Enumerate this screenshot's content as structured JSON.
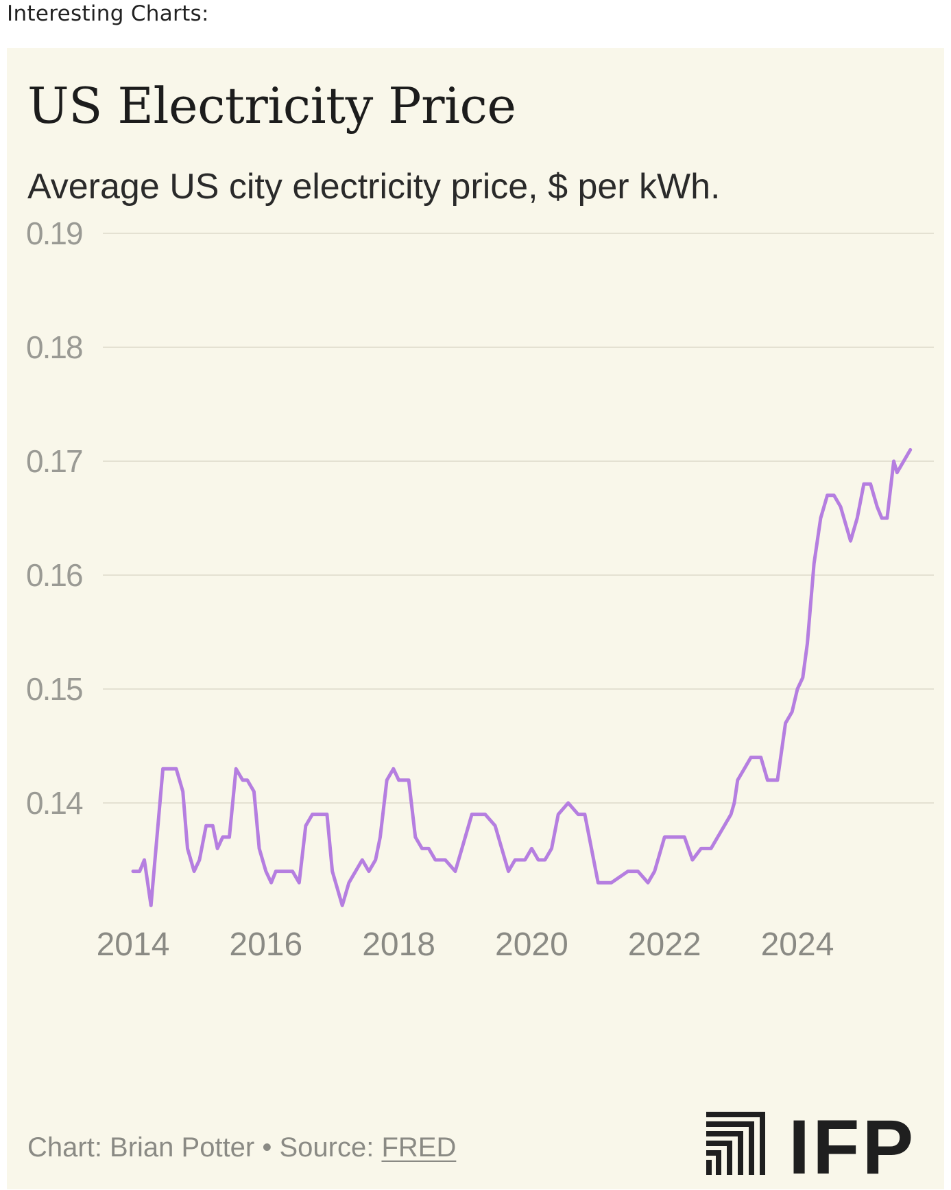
{
  "page": {
    "heading": "Interesting Charts:"
  },
  "chart_data": {
    "type": "line",
    "title": "US Electricity Price",
    "subtitle": "Average US city electricity price, $ per kWh.",
    "xlabel": "",
    "ylabel": "",
    "xlim": [
      2014,
      2025.95
    ],
    "ylim": [
      0.131,
      0.19
    ],
    "y_ticks": [
      "0.19",
      "0.18",
      "0.17",
      "0.16",
      "0.15",
      "0.14"
    ],
    "x_ticks": [
      "2014",
      "2016",
      "2018",
      "2020",
      "2022",
      "2024"
    ],
    "grid": true,
    "legend": "none",
    "line_color": "#b57ee0",
    "series": [
      {
        "x": [
          2014.0,
          2014.1,
          2014.17,
          2014.27,
          2014.45,
          2014.65,
          2014.75,
          2014.82,
          2014.92,
          2015.0,
          2015.1,
          2015.2,
          2015.27,
          2015.35,
          2015.45,
          2015.55,
          2015.65,
          2015.72,
          2015.82,
          2015.9,
          2016.0,
          2016.08,
          2016.15,
          2016.3,
          2016.4,
          2016.5,
          2016.6,
          2016.7,
          2016.8,
          2016.92,
          2017.0,
          2017.15,
          2017.25,
          2017.35,
          2017.45,
          2017.55,
          2017.65,
          2017.72,
          2017.82,
          2017.92,
          2018.0,
          2018.15,
          2018.25,
          2018.35,
          2018.45,
          2018.55,
          2018.7,
          2018.85,
          2018.95,
          2019.1,
          2019.2,
          2019.3,
          2019.45,
          2019.55,
          2019.65,
          2019.75,
          2019.9,
          2020.0,
          2020.1,
          2020.2,
          2020.3,
          2020.4,
          2020.55,
          2020.7,
          2020.8,
          2020.9,
          2021.0,
          2021.2,
          2021.45,
          2021.6,
          2021.75,
          2021.85,
          2022.0,
          2022.05,
          2022.15,
          2022.3,
          2022.42,
          2022.55,
          2022.6,
          2022.7,
          2022.8,
          2022.9,
          2023.0,
          2023.05,
          2023.1,
          2023.2,
          2023.3,
          2023.45,
          2023.55,
          2023.62,
          2023.7,
          2023.82,
          2023.92,
          2024.0,
          2024.08,
          2024.15,
          2024.25,
          2024.35,
          2024.45,
          2024.55,
          2024.65,
          2024.8,
          2024.9,
          2025.0,
          2025.1,
          2025.2,
          2025.27,
          2025.35,
          2025.45,
          2025.5,
          2025.6,
          2025.7
        ],
        "values": [
          0.134,
          0.134,
          0.135,
          0.131,
          0.143,
          0.143,
          0.141,
          0.136,
          0.134,
          0.135,
          0.138,
          0.138,
          0.136,
          0.137,
          0.137,
          0.143,
          0.142,
          0.142,
          0.141,
          0.136,
          0.134,
          0.133,
          0.134,
          0.134,
          0.134,
          0.133,
          0.138,
          0.139,
          0.139,
          0.139,
          0.134,
          0.131,
          0.133,
          0.134,
          0.135,
          0.134,
          0.135,
          0.137,
          0.142,
          0.143,
          0.142,
          0.142,
          0.137,
          0.136,
          0.136,
          0.135,
          0.135,
          0.134,
          0.136,
          0.139,
          0.139,
          0.139,
          0.138,
          0.136,
          0.134,
          0.135,
          0.135,
          0.136,
          0.135,
          0.135,
          0.136,
          0.139,
          0.14,
          0.139,
          0.139,
          0.136,
          0.133,
          0.133,
          0.134,
          0.134,
          0.133,
          0.134,
          0.137,
          0.137,
          0.137,
          0.137,
          0.135,
          0.136,
          0.136,
          0.136,
          0.137,
          0.138,
          0.139,
          0.14,
          0.142,
          0.143,
          0.144,
          0.144,
          0.142,
          0.142,
          0.142,
          0.147,
          0.148,
          0.15,
          0.151,
          0.154,
          0.161,
          0.165,
          0.167,
          0.167,
          0.166,
          0.163,
          0.165,
          0.168,
          0.168,
          0.166,
          0.165,
          0.165,
          0.17,
          0.169,
          0.17,
          0.171
        ]
      }
    ]
  },
  "footer": {
    "credit": "Chart: Brian Potter • Source: ",
    "source": "FRED"
  },
  "logo": {
    "text": "IFP"
  }
}
